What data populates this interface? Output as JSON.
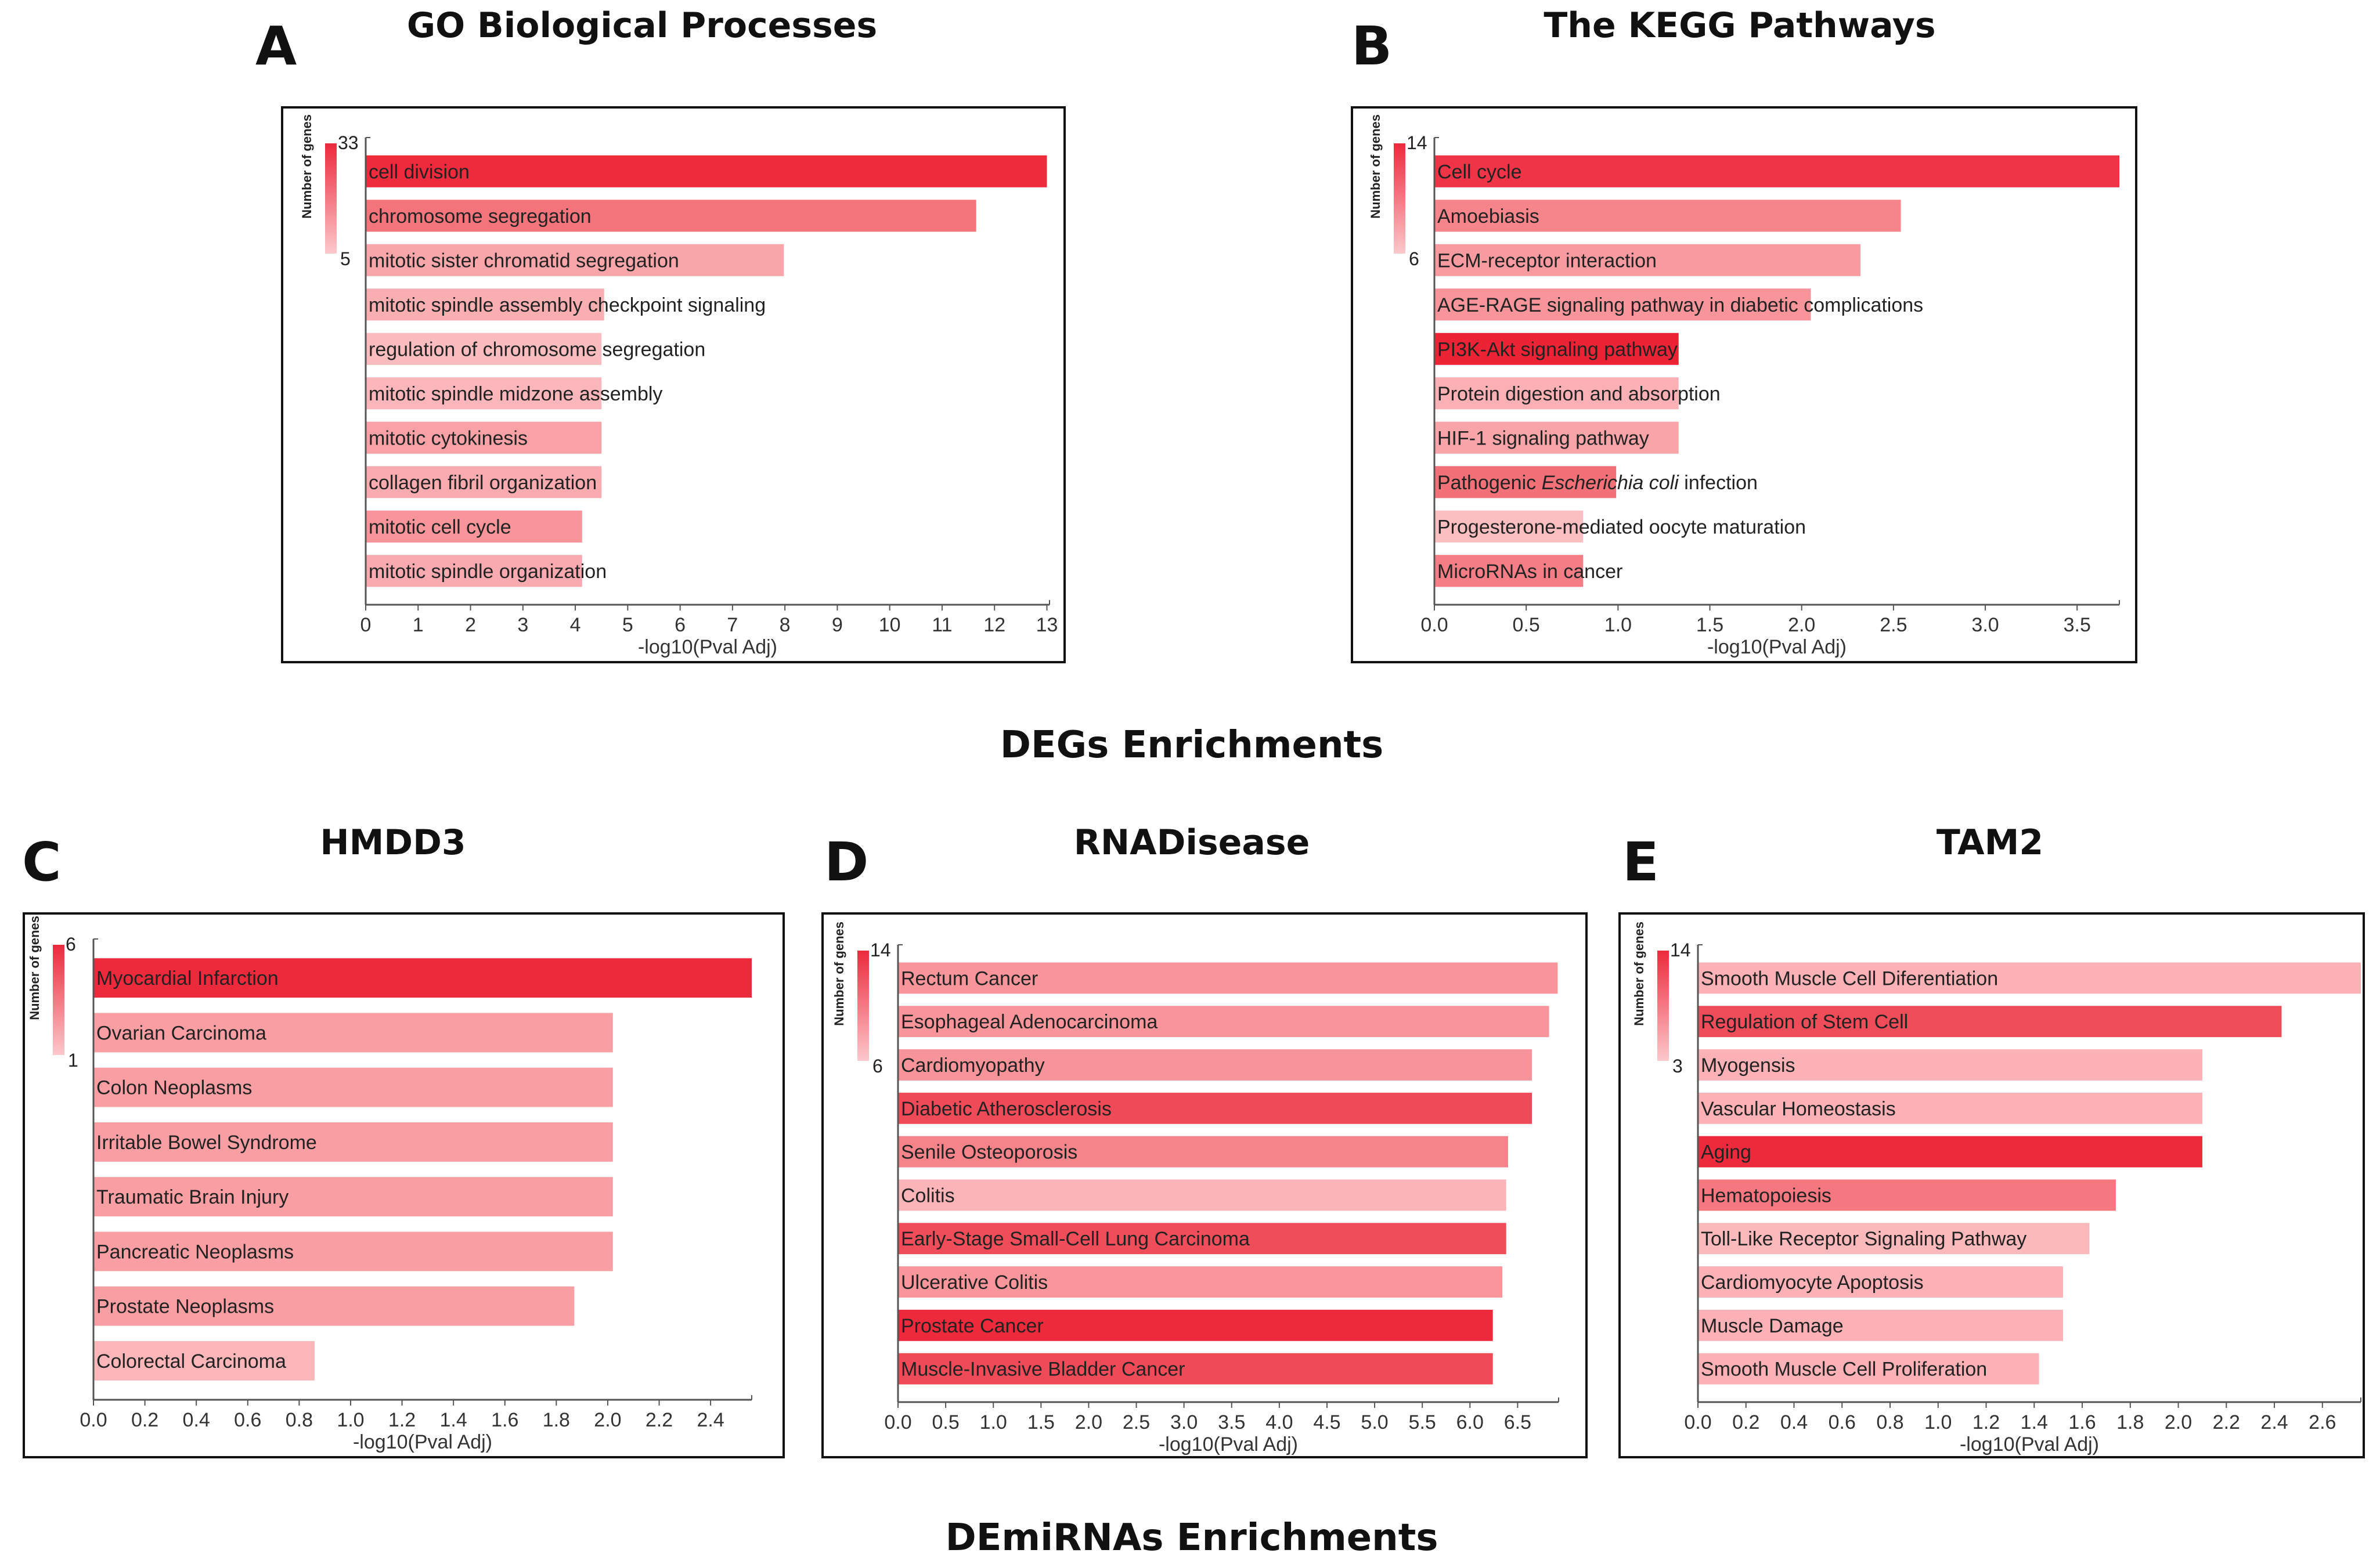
{
  "sections": {
    "degs": "DEGs Enrichments",
    "demirnas": "DEmiRNAs Enrichments"
  },
  "chart_data": [
    {
      "panel": "A",
      "title": "GO Biological  Processes",
      "type": "bar",
      "orientation": "horizontal",
      "xlabel": "-log10(Pval Adj)",
      "xlim": [
        0,
        13.05
      ],
      "xticks": [
        "0",
        "1",
        "2",
        "3",
        "4",
        "5",
        "6",
        "7",
        "8",
        "9",
        "10",
        "11",
        "12",
        "13"
      ],
      "legend": {
        "title": "Number of genes",
        "max": "33",
        "min": "5"
      },
      "categories": [
        "cell division",
        "chromosome segregation",
        "mitotic sister chromatid segregation",
        "mitotic spindle assembly checkpoint signaling",
        "regulation of chromosome segregation",
        "mitotic spindle midzone assembly",
        "mitotic cytokinesis",
        "collagen fibril organization",
        "mitotic cell cycle",
        "mitotic spindle organization"
      ],
      "values": [
        13.0,
        11.65,
        7.98,
        4.55,
        4.5,
        4.5,
        4.5,
        4.5,
        4.13,
        4.13
      ],
      "colors": [
        "#ee2b3d",
        "#f4747c",
        "#f9a6ab",
        "#f9aeb2",
        "#fbbcbf",
        "#fab6ba",
        "#f8a2a7",
        "#f9abaf",
        "#f7959b",
        "#f9aab0"
      ]
    },
    {
      "panel": "B",
      "title": "The KEGG Pathways",
      "type": "bar",
      "orientation": "horizontal",
      "xlabel": "-log10(Pval Adj)",
      "xlim": [
        0,
        3.73
      ],
      "xticks": [
        "0.0",
        "0.5",
        "1.0",
        "1.5",
        "2.0",
        "2.5",
        "3.0",
        "3.5"
      ],
      "legend": {
        "title": "Number of genes",
        "max": "14",
        "min": "6"
      },
      "categories": [
        "Cell cycle",
        "Amoebiasis",
        "ECM-receptor interaction",
        "AGE-RAGE signaling pathway in diabetic complications",
        "PI3K-Akt signaling pathway",
        "Protein digestion and absorption",
        "HIF-1 signaling pathway",
        "Pathogenic Escherichia coli infection",
        "Progesterone-mediated oocyte maturation",
        "MicroRNAs in cancer"
      ],
      "italic_terms": [
        "Escherichia coli"
      ],
      "values": [
        3.73,
        2.54,
        2.32,
        2.05,
        1.33,
        1.33,
        1.33,
        0.99,
        0.81,
        0.81
      ],
      "colors": [
        "#ee3446",
        "#f5848b",
        "#f89ba1",
        "#f7959b",
        "#ec2235",
        "#fab0b4",
        "#f9a4a9",
        "#f27178",
        "#fbbec1",
        "#f57e86"
      ]
    },
    {
      "panel": "C",
      "title": "HMDD3",
      "type": "bar",
      "orientation": "horizontal",
      "xlabel": "-log10(Pval Adj)",
      "xlim": [
        0,
        2.56
      ],
      "xticks": [
        "0.0",
        "0.2",
        "0.4",
        "0.6",
        "0.8",
        "1.0",
        "1.2",
        "1.4",
        "1.6",
        "1.8",
        "2.0",
        "2.2",
        "2.4"
      ],
      "legend": {
        "title": "Number of genes",
        "max": "6",
        "min": "1"
      },
      "categories": [
        "Myocardial Infarction",
        "Ovarian Carcinoma",
        "Colon Neoplasms",
        "Irritable Bowel Syndrome",
        "Traumatic Brain Injury",
        "Pancreatic Neoplasms",
        "Prostate Neoplasms",
        "Colorectal Carcinoma"
      ],
      "values": [
        2.56,
        2.02,
        2.02,
        2.02,
        2.02,
        2.02,
        1.87,
        0.86
      ],
      "colors": [
        "#ec2a3c",
        "#f99ea3",
        "#f99ea3",
        "#f99ea3",
        "#f99ea3",
        "#f99ea3",
        "#f99ea3",
        "#fbb6ba"
      ]
    },
    {
      "panel": "D",
      "title": "RNADisease",
      "type": "bar",
      "orientation": "horizontal",
      "xlabel": "-log10(Pval Adj)",
      "xlim": [
        0,
        6.93
      ],
      "xticks": [
        "0.0",
        "0.5",
        "1.0",
        "1.5",
        "2.0",
        "2.5",
        "3.0",
        "3.5",
        "4.0",
        "4.5",
        "5.0",
        "5.5",
        "6.0",
        "6.5"
      ],
      "legend": {
        "title": "Number of genes",
        "max": "14",
        "min": "6"
      },
      "categories": [
        "Rectum Cancer",
        "Esophageal Adenocarcinoma",
        "Cardiomyopathy",
        "Diabetic Atherosclerosis",
        "Senile Osteoporosis",
        "Colitis",
        "Early-Stage Small-Cell Lung Carcinoma",
        "Ulcerative Colitis",
        "Prostate Cancer",
        "Muscle-Invasive Bladder Cancer"
      ],
      "values": [
        6.92,
        6.83,
        6.65,
        6.65,
        6.4,
        6.38,
        6.38,
        6.34,
        6.24,
        6.24
      ],
      "colors": [
        "#f8959b",
        "#f8959b",
        "#f7949a",
        "#ef4a58",
        "#f5838a",
        "#fbb5b9",
        "#ef4d5a",
        "#f8969c",
        "#ec2a3c",
        "#ef4a57"
      ]
    },
    {
      "panel": "E",
      "title": "TAM2",
      "type": "bar",
      "orientation": "horizontal",
      "xlabel": "-log10(Pval Adj)",
      "xlim": [
        0,
        2.76
      ],
      "xticks": [
        "0.0",
        "0.2",
        "0.4",
        "0.6",
        "0.8",
        "1.0",
        "1.2",
        "1.4",
        "1.6",
        "1.8",
        "2.0",
        "2.2",
        "2.4",
        "2.6"
      ],
      "legend": {
        "title": "Number of genes",
        "max": "14",
        "min": "3"
      },
      "categories": [
        "Smooth Muscle Cell Diferentiation",
        "Regulation of Stem Cell",
        "Myogensis",
        "Vascular Homeostasis",
        "Aging",
        "Hematopoiesis",
        "Toll-Like Receptor Signaling Pathway",
        "Cardiomyocyte Apoptosis",
        "Muscle Damage",
        "Smooth Muscle Cell Proliferation"
      ],
      "values": [
        2.76,
        2.43,
        2.1,
        2.1,
        2.1,
        1.74,
        1.63,
        1.52,
        1.52,
        1.42
      ],
      "colors": [
        "#fbb1b5",
        "#ef4c59",
        "#fbb1b5",
        "#fbb1b5",
        "#ec2a3c",
        "#f57880",
        "#fbb9bc",
        "#fbb1b5",
        "#fbb1b5",
        "#fbb1b5"
      ]
    }
  ],
  "legend_gradient": {
    "high": "#ec2a3c",
    "low": "#fcc8cb"
  }
}
